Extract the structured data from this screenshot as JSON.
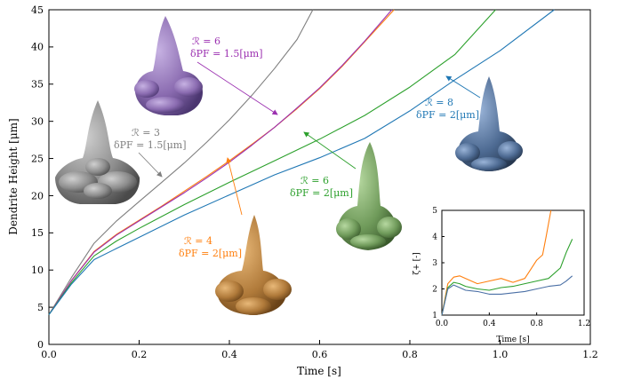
{
  "chart_data": [
    {
      "type": "line",
      "xlabel": "Time [s]",
      "ylabel": "Dendrite Height [μm]",
      "xlim": [
        0.0,
        1.2
      ],
      "ylim": [
        0,
        45
      ],
      "xticks": [
        "0.0",
        "0.2",
        "0.4",
        "0.6",
        "0.8",
        "1.0",
        "1.2"
      ],
      "yticks": [
        "0",
        "5",
        "10",
        "15",
        "20",
        "25",
        "30",
        "35",
        "40",
        "45"
      ],
      "grid": false,
      "series": [
        {
          "name": "ℛ = 3, δPF = 1.5[μm]",
          "color": "#7f7f7f",
          "points": [
            [
              0,
              4
            ],
            [
              0.05,
              9
            ],
            [
              0.1,
              13.6
            ],
            [
              0.15,
              16.6
            ],
            [
              0.2,
              19.2
            ],
            [
              0.25,
              21.8
            ],
            [
              0.3,
              24.4
            ],
            [
              0.35,
              27.2
            ],
            [
              0.4,
              30.2
            ],
            [
              0.45,
              33.5
            ],
            [
              0.5,
              37.1
            ],
            [
              0.55,
              41
            ],
            [
              0.585,
              45
            ]
          ]
        },
        {
          "name": "ℛ = 4, δPF = 2[μm]",
          "color": "#ff7f0e",
          "points": [
            [
              0,
              4
            ],
            [
              0.05,
              8.6
            ],
            [
              0.1,
              12.5
            ],
            [
              0.15,
              14.8
            ],
            [
              0.2,
              16.7
            ],
            [
              0.25,
              18.6
            ],
            [
              0.3,
              20.6
            ],
            [
              0.35,
              22.6
            ],
            [
              0.4,
              24.7
            ],
            [
              0.45,
              26.9
            ],
            [
              0.5,
              29.2
            ],
            [
              0.55,
              31.7
            ],
            [
              0.6,
              34.4
            ],
            [
              0.65,
              37.4
            ],
            [
              0.7,
              40.7
            ],
            [
              0.765,
              45
            ]
          ]
        },
        {
          "name": "ℛ = 6, δPF = 1.5[μm]",
          "color": "#9b30b0",
          "points": [
            [
              0,
              4
            ],
            [
              0.05,
              8.6
            ],
            [
              0.1,
              12.4
            ],
            [
              0.15,
              14.7
            ],
            [
              0.2,
              16.6
            ],
            [
              0.25,
              18.5
            ],
            [
              0.3,
              20.4
            ],
            [
              0.35,
              22.4
            ],
            [
              0.4,
              24.5
            ],
            [
              0.45,
              26.8
            ],
            [
              0.5,
              29.2
            ],
            [
              0.55,
              31.8
            ],
            [
              0.6,
              34.5
            ],
            [
              0.65,
              37.5
            ],
            [
              0.7,
              40.8
            ],
            [
              0.76,
              45
            ]
          ]
        },
        {
          "name": "ℛ = 6, δPF = 2[μm]",
          "color": "#2ca02c",
          "points": [
            [
              0,
              4
            ],
            [
              0.05,
              8.3
            ],
            [
              0.1,
              11.9
            ],
            [
              0.15,
              13.9
            ],
            [
              0.2,
              15.6
            ],
            [
              0.3,
              18.8
            ],
            [
              0.4,
              21.8
            ],
            [
              0.5,
              24.7
            ],
            [
              0.6,
              27.6
            ],
            [
              0.7,
              30.8
            ],
            [
              0.8,
              34.6
            ],
            [
              0.9,
              39
            ],
            [
              0.99,
              45
            ]
          ]
        },
        {
          "name": "ℛ = 8, δPF = 2[μm]",
          "color": "#1f77b4",
          "points": [
            [
              0,
              4
            ],
            [
              0.05,
              8.1
            ],
            [
              0.1,
              11.4
            ],
            [
              0.15,
              12.9
            ],
            [
              0.2,
              14.4
            ],
            [
              0.3,
              17.4
            ],
            [
              0.4,
              20.1
            ],
            [
              0.5,
              22.8
            ],
            [
              0.6,
              25.1
            ],
            [
              0.7,
              27.7
            ],
            [
              0.8,
              31.4
            ],
            [
              0.9,
              35.6
            ],
            [
              1.0,
              39.5
            ],
            [
              1.12,
              45
            ]
          ]
        }
      ],
      "annotations": [
        {
          "line1": "ℛ = 6",
          "line2": "δPF = 1.5[μm]",
          "color": "#9b30b0"
        },
        {
          "line1": "ℛ = 3",
          "line2": "δPF = 1.5[μm]",
          "color": "#7f7f7f"
        },
        {
          "line1": "ℛ = 4",
          "line2": "δPF = 2[μm]",
          "color": "#ff7f0e"
        },
        {
          "line1": "ℛ = 6",
          "line2": "δPF = 2[μm]",
          "color": "#2ca02c"
        },
        {
          "line1": "ℛ = 8",
          "line2": "δPF = 2[μm]",
          "color": "#1f77b4"
        }
      ]
    },
    {
      "type": "line",
      "inset": true,
      "xlabel": "Time [s]",
      "ylabel": "ζ+ [-]",
      "xlim": [
        0.0,
        1.2
      ],
      "ylim": [
        1,
        5
      ],
      "xticks": [
        "0.0",
        "0.4",
        "0.8",
        "1.2"
      ],
      "yticks": [
        "1",
        "2",
        "3",
        "4",
        "5"
      ],
      "series": [
        {
          "color": "#ff7f0e",
          "points": [
            [
              0,
              1
            ],
            [
              0.05,
              2.2
            ],
            [
              0.1,
              2.45
            ],
            [
              0.15,
              2.5
            ],
            [
              0.2,
              2.4
            ],
            [
              0.3,
              2.2
            ],
            [
              0.4,
              2.3
            ],
            [
              0.5,
              2.4
            ],
            [
              0.6,
              2.25
            ],
            [
              0.7,
              2.4
            ],
            [
              0.75,
              2.75
            ],
            [
              0.8,
              3.1
            ],
            [
              0.85,
              3.3
            ],
            [
              0.88,
              4
            ],
            [
              0.92,
              5
            ]
          ]
        },
        {
          "color": "#2ca02c",
          "points": [
            [
              0,
              1
            ],
            [
              0.05,
              2.05
            ],
            [
              0.1,
              2.25
            ],
            [
              0.15,
              2.2
            ],
            [
              0.2,
              2.1
            ],
            [
              0.3,
              2.0
            ],
            [
              0.4,
              1.95
            ],
            [
              0.5,
              2.05
            ],
            [
              0.6,
              2.1
            ],
            [
              0.7,
              2.2
            ],
            [
              0.8,
              2.3
            ],
            [
              0.9,
              2.4
            ],
            [
              1.0,
              2.8
            ],
            [
              1.05,
              3.4
            ],
            [
              1.1,
              3.9
            ]
          ]
        },
        {
          "color": "#4a6fa5",
          "points": [
            [
              0,
              1
            ],
            [
              0.05,
              2.0
            ],
            [
              0.1,
              2.15
            ],
            [
              0.15,
              2.05
            ],
            [
              0.2,
              1.95
            ],
            [
              0.3,
              1.9
            ],
            [
              0.4,
              1.8
            ],
            [
              0.5,
              1.8
            ],
            [
              0.6,
              1.85
            ],
            [
              0.7,
              1.9
            ],
            [
              0.8,
              2.0
            ],
            [
              0.9,
              2.1
            ],
            [
              1.0,
              2.15
            ],
            [
              1.05,
              2.3
            ],
            [
              1.1,
              2.5
            ]
          ]
        }
      ]
    }
  ],
  "render_colors": {
    "gray_dendrite": "#8c8c8c",
    "purple_dendrite": "#8a6bb0",
    "orange_dendrite": "#b07a3a",
    "green_dendrite": "#6f9a5a",
    "blue_dendrite": "#4d6a92"
  }
}
